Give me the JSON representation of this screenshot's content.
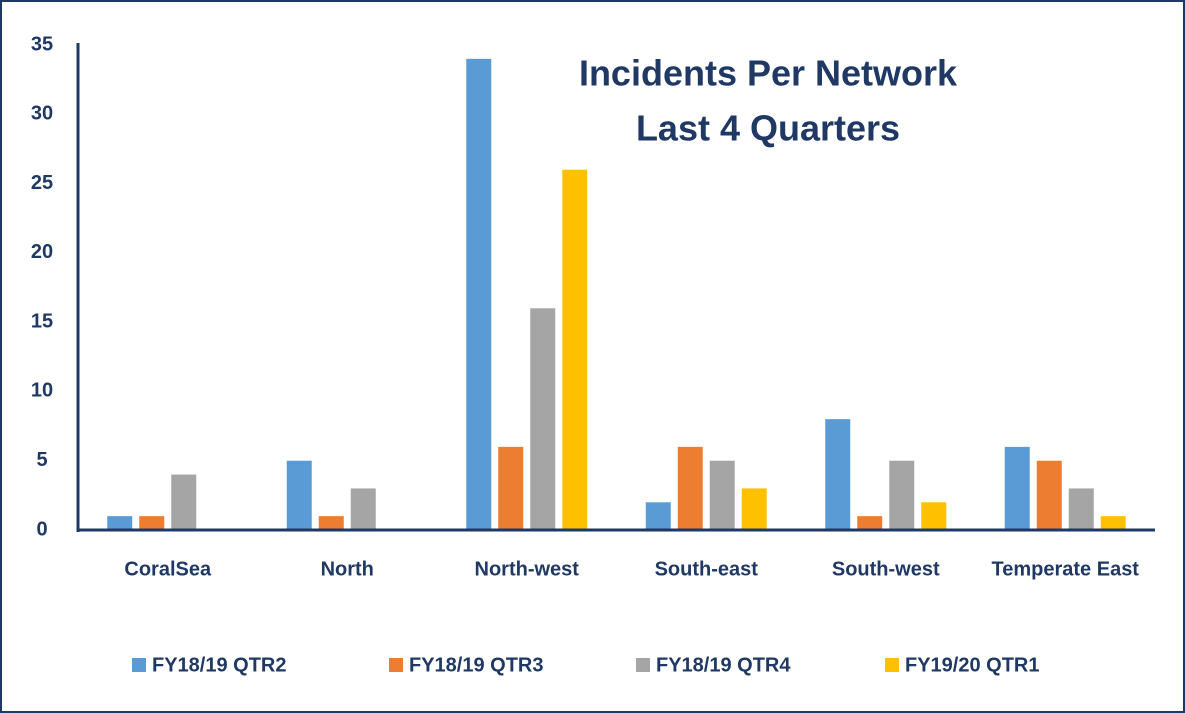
{
  "chart_data": {
    "type": "bar",
    "title": "Incidents Per Network",
    "subtitle": "Last 4 Quarters",
    "categories": [
      "CoralSea",
      "North",
      "North-west",
      "South-east",
      "South-west",
      "Temperate East"
    ],
    "series": [
      {
        "name": "FY18/19 QTR2",
        "color": "#5b9bd5",
        "values": [
          1,
          5,
          34,
          2,
          8,
          6
        ]
      },
      {
        "name": "FY18/19 QTR3",
        "color": "#ed7d31",
        "values": [
          1,
          1,
          6,
          6,
          1,
          5
        ]
      },
      {
        "name": "FY18/19 QTR4",
        "color": "#a5a5a5",
        "values": [
          4,
          3,
          16,
          5,
          5,
          3
        ]
      },
      {
        "name": "FY19/20 QTR1",
        "color": "#ffc000",
        "values": [
          0,
          0,
          26,
          3,
          2,
          1
        ]
      }
    ],
    "ylim": [
      0,
      35
    ],
    "yticks": [
      0,
      5,
      10,
      15,
      20,
      25,
      30,
      35
    ],
    "grid": false,
    "legend": "bottom"
  }
}
